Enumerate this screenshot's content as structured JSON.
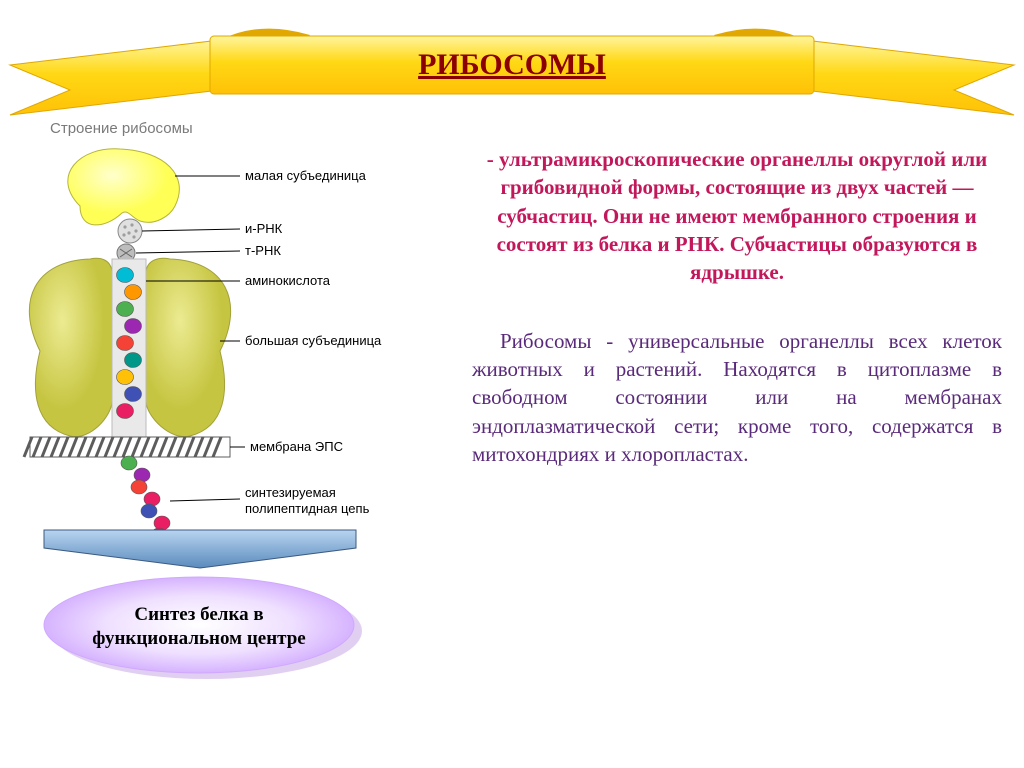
{
  "banner": {
    "title": "РИБОСОМЫ",
    "title_color": "#8b0000",
    "title_fontsize": 30,
    "ribbon_fill": "#ffd814",
    "ribbon_top": "#fff176",
    "ribbon_shadow": "#e0a800"
  },
  "diagram": {
    "title": "Строение рибосомы",
    "title_color": "#7a7a7a",
    "small_subunit_fill": "#ffff66",
    "large_subunit_fill": "#d6d455",
    "mrna_fill": "#e5e5e5",
    "mrna_dot": "#bdbdbd",
    "trna_fill": "#9e9e9e",
    "membrane_dark": "#5c5c5c",
    "membrane_light": "#ffffff",
    "labels": {
      "small": "малая субъединица",
      "mrna": "и-РНК",
      "trna": "т-РНК",
      "amino": "аминокислота",
      "large": "большая субъединица",
      "membrane": "мембрана ЭПС",
      "chain_l1": "синтезируемая",
      "chain_l2": "полипептидная цепь"
    },
    "label_fontsize": 13,
    "aminoacid_colors": [
      "#00bcd4",
      "#ff9800",
      "#4caf50",
      "#9c27b0",
      "#f44336",
      "#009688",
      "#ffc107",
      "#3f51b5",
      "#e91e63"
    ],
    "chain_colors": [
      "#4caf50",
      "#9c27b0",
      "#f44336",
      "#e91e63",
      "#3f51b5",
      "#e91e63",
      "#d81b60"
    ]
  },
  "arrow": {
    "fill": "#6fa8dc",
    "stroke": "#3d5a80",
    "text": ""
  },
  "ellipse": {
    "fill": "#e1c8ff",
    "mid": "#f3e9ff",
    "stroke": "#d0a8ff",
    "line1": "Синтез белка в",
    "line2": "функциональном центре",
    "fontsize": 19
  },
  "text": {
    "para1": "- ультрамикроскопические органеллы округлой или грибовидной формы, состоящие из двух частей — субчастиц. Они не имеют мембранного строения и состоят из белка и РНК. Субчастицы образуются в ядрышке.",
    "para1_color": "#c2185b",
    "para2": "Рибосомы - универсальные органеллы всех клеток животных и растений. Находятся в цитоплазме в свободном состоянии или на мембранах эндоплазматической сети; кроме того, содержатся в митохондриях и хлоропластах.",
    "para2_color": "#5a2a7a",
    "fontsize": 21
  }
}
